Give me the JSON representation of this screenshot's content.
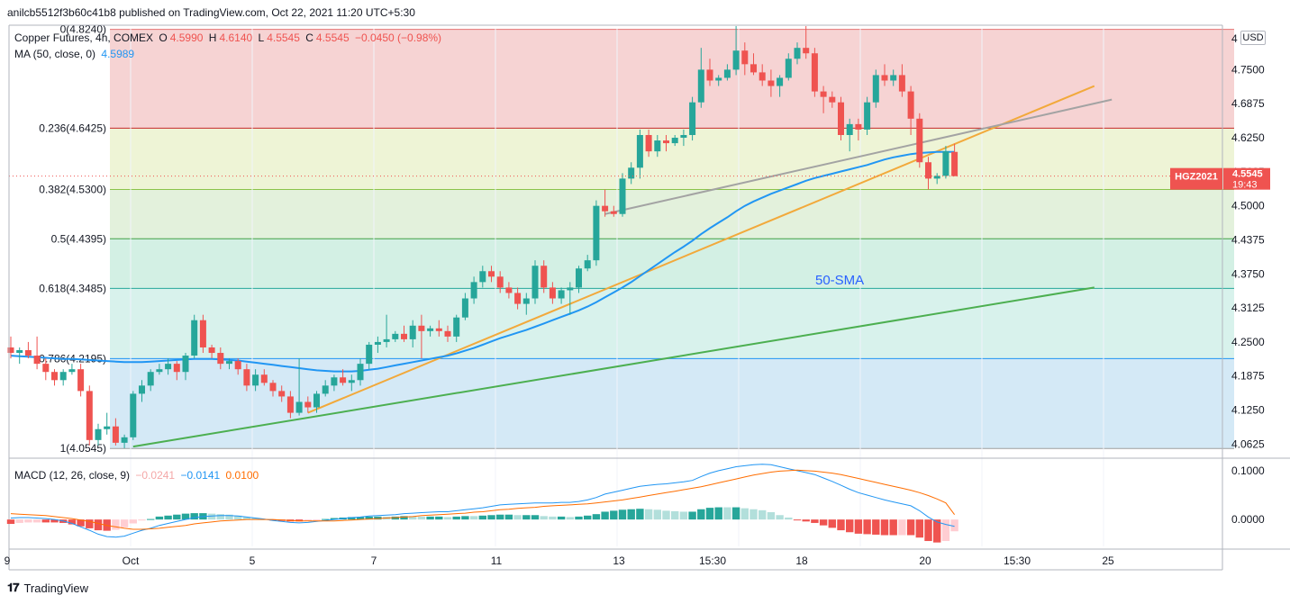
{
  "header": {
    "published": "anilcb5512f3b60c41b8 published on TradingView.com, Oct 22, 2021 11:20 UTC+5:30"
  },
  "legend": {
    "title": "Copper Futures, 4h, COMEX",
    "o_label": "O",
    "o_value": "4.5990",
    "h_label": "H",
    "h_value": "4.6140",
    "l_label": "L",
    "l_value": "4.5545",
    "c_label": "C",
    "c_value": "4.5545",
    "change": "−0.0450 (−0.98%)",
    "ma_label": "MA (50, close, 0)",
    "ma_value": "4.5989"
  },
  "macd_legend": {
    "label": "MACD (12, 26, close, 9)",
    "hist_value": "−0.0241",
    "macd_value": "−0.0141",
    "signal_value": "0.0100"
  },
  "price_axis": {
    "currency": "USD",
    "current_symbol": "HGZ2021",
    "current_price": "4.5545",
    "countdown": "19:43"
  },
  "footer": {
    "brand": "TradingView"
  },
  "colors": {
    "up": "#26a69a",
    "down": "#ef5350",
    "sma": "#2196f3",
    "macd_line": "#2196f3",
    "signal_line": "#ff6d00",
    "fib_red": "#f6cfcf",
    "trend_orange": "#f2a93b",
    "trend_green": "#4caf50",
    "trend_gray": "#a3a3a3"
  },
  "chart_data": [
    {
      "type": "candlestick",
      "title": "Copper Futures, 4h, COMEX",
      "annotation": "50-SMA",
      "ylim": [
        4.04,
        4.825
      ],
      "y_ticks": [
        "4",
        "4.7500",
        "4.6875",
        "4.6250",
        "4.5625",
        "4.5000",
        "4.4375",
        "4.3750",
        "4.3125",
        "4.2500",
        "4.1875",
        "4.1250",
        "4.0625"
      ],
      "x_ticks": [
        "9",
        "Oct",
        "5",
        "7",
        "11",
        "13",
        "15:30",
        "18",
        "20",
        "15:30",
        "25"
      ],
      "fib_levels": [
        {
          "label": "0(4.8240)",
          "price": 4.824
        },
        {
          "label": "0.236(4.6425)",
          "price": 4.6425
        },
        {
          "label": "0.382(4.5300)",
          "price": 4.53
        },
        {
          "label": "0.5(4.4395)",
          "price": 4.4395
        },
        {
          "label": "0.618(4.3485)",
          "price": 4.3485
        },
        {
          "label": "0.786(4.2195)",
          "price": 4.2195
        },
        {
          "label": "1(4.0545)",
          "price": 4.0545
        }
      ],
      "candles": [
        [
          4.24,
          4.26,
          4.22,
          4.23
        ],
        [
          4.23,
          4.24,
          4.21,
          4.235
        ],
        [
          4.235,
          4.25,
          4.22,
          4.225
        ],
        [
          4.225,
          4.26,
          4.2,
          4.21
        ],
        [
          4.21,
          4.22,
          4.18,
          4.195
        ],
        [
          4.195,
          4.2,
          4.17,
          4.18
        ],
        [
          4.18,
          4.2,
          4.17,
          4.195
        ],
        [
          4.195,
          4.21,
          4.19,
          4.2
        ],
        [
          4.2,
          4.21,
          4.15,
          4.16
        ],
        [
          4.16,
          4.17,
          4.06,
          4.07
        ],
        [
          4.07,
          4.1,
          4.06,
          4.09
        ],
        [
          4.09,
          4.12,
          4.08,
          4.095
        ],
        [
          4.095,
          4.11,
          4.06,
          4.065
        ],
        [
          4.065,
          4.08,
          4.055,
          4.075
        ],
        [
          4.075,
          4.16,
          4.07,
          4.155
        ],
        [
          4.155,
          4.18,
          4.14,
          4.17
        ],
        [
          4.17,
          4.2,
          4.16,
          4.195
        ],
        [
          4.195,
          4.21,
          4.19,
          4.2
        ],
        [
          4.2,
          4.22,
          4.19,
          4.21
        ],
        [
          4.21,
          4.215,
          4.18,
          4.195
        ],
        [
          4.195,
          4.23,
          4.18,
          4.225
        ],
        [
          4.225,
          4.3,
          4.22,
          4.29
        ],
        [
          4.29,
          4.3,
          4.23,
          4.24
        ],
        [
          4.24,
          4.245,
          4.22,
          4.23
        ],
        [
          4.23,
          4.24,
          4.2,
          4.21
        ],
        [
          4.21,
          4.22,
          4.2,
          4.215
        ],
        [
          4.215,
          4.22,
          4.19,
          4.2
        ],
        [
          4.2,
          4.21,
          4.16,
          4.17
        ],
        [
          4.17,
          4.2,
          4.16,
          4.19
        ],
        [
          4.19,
          4.2,
          4.17,
          4.175
        ],
        [
          4.175,
          4.18,
          4.15,
          4.16
        ],
        [
          4.16,
          4.17,
          4.14,
          4.15
        ],
        [
          4.15,
          4.16,
          4.11,
          4.12
        ],
        [
          4.12,
          4.22,
          4.115,
          4.14
        ],
        [
          4.14,
          4.15,
          4.12,
          4.13
        ],
        [
          4.13,
          4.16,
          4.12,
          4.155
        ],
        [
          4.155,
          4.18,
          4.15,
          4.17
        ],
        [
          4.17,
          4.19,
          4.16,
          4.185
        ],
        [
          4.185,
          4.2,
          4.17,
          4.175
        ],
        [
          4.175,
          4.19,
          4.16,
          4.18
        ],
        [
          4.18,
          4.22,
          4.17,
          4.21
        ],
        [
          4.21,
          4.25,
          4.2,
          4.245
        ],
        [
          4.245,
          4.26,
          4.23,
          4.25
        ],
        [
          4.25,
          4.3,
          4.24,
          4.255
        ],
        [
          4.255,
          4.27,
          4.25,
          4.265
        ],
        [
          4.265,
          4.28,
          4.25,
          4.255
        ],
        [
          4.255,
          4.29,
          4.24,
          4.28
        ],
        [
          4.28,
          4.3,
          4.22,
          4.27
        ],
        [
          4.27,
          4.28,
          4.26,
          4.275
        ],
        [
          4.275,
          4.29,
          4.26,
          4.27
        ],
        [
          4.27,
          4.28,
          4.25,
          4.26
        ],
        [
          4.26,
          4.3,
          4.25,
          4.295
        ],
        [
          4.295,
          4.34,
          4.29,
          4.33
        ],
        [
          4.33,
          4.37,
          4.32,
          4.36
        ],
        [
          4.36,
          4.39,
          4.35,
          4.38
        ],
        [
          4.38,
          4.39,
          4.36,
          4.37
        ],
        [
          4.37,
          4.38,
          4.34,
          4.35
        ],
        [
          4.35,
          4.36,
          4.33,
          4.34
        ],
        [
          4.34,
          4.35,
          4.31,
          4.32
        ],
        [
          4.32,
          4.34,
          4.3,
          4.33
        ],
        [
          4.33,
          4.4,
          4.32,
          4.39
        ],
        [
          4.39,
          4.4,
          4.34,
          4.35
        ],
        [
          4.35,
          4.36,
          4.32,
          4.33
        ],
        [
          4.33,
          4.35,
          4.32,
          4.345
        ],
        [
          4.345,
          4.36,
          4.3,
          4.35
        ],
        [
          4.35,
          4.39,
          4.34,
          4.385
        ],
        [
          4.385,
          4.41,
          4.38,
          4.4
        ],
        [
          4.4,
          4.51,
          4.39,
          4.5
        ],
        [
          4.5,
          4.53,
          4.48,
          4.49
        ],
        [
          4.49,
          4.5,
          4.48,
          4.485
        ],
        [
          4.485,
          4.56,
          4.48,
          4.55
        ],
        [
          4.55,
          4.58,
          4.54,
          4.57
        ],
        [
          4.57,
          4.64,
          4.55,
          4.63
        ],
        [
          4.63,
          4.64,
          4.59,
          4.6
        ],
        [
          4.6,
          4.63,
          4.59,
          4.62
        ],
        [
          4.62,
          4.63,
          4.6,
          4.615
        ],
        [
          4.615,
          4.63,
          4.61,
          4.625
        ],
        [
          4.625,
          4.64,
          4.61,
          4.63
        ],
        [
          4.63,
          4.7,
          4.62,
          4.69
        ],
        [
          4.69,
          4.79,
          4.68,
          4.75
        ],
        [
          4.75,
          4.77,
          4.72,
          4.73
        ],
        [
          4.73,
          4.74,
          4.72,
          4.735
        ],
        [
          4.735,
          4.76,
          4.73,
          4.75
        ],
        [
          4.75,
          4.83,
          4.74,
          4.785
        ],
        [
          4.785,
          4.8,
          4.74,
          4.76
        ],
        [
          4.76,
          4.78,
          4.74,
          4.745
        ],
        [
          4.745,
          4.76,
          4.72,
          4.73
        ],
        [
          4.73,
          4.75,
          4.7,
          4.72
        ],
        [
          4.72,
          4.74,
          4.7,
          4.735
        ],
        [
          4.735,
          4.78,
          4.73,
          4.77
        ],
        [
          4.77,
          4.8,
          4.76,
          4.79
        ],
        [
          4.79,
          4.83,
          4.77,
          4.78
        ],
        [
          4.78,
          4.79,
          4.7,
          4.71
        ],
        [
          4.71,
          4.72,
          4.67,
          4.7
        ],
        [
          4.7,
          4.71,
          4.68,
          4.69
        ],
        [
          4.69,
          4.7,
          4.62,
          4.63
        ],
        [
          4.63,
          4.66,
          4.6,
          4.65
        ],
        [
          4.65,
          4.66,
          4.62,
          4.64
        ],
        [
          4.64,
          4.7,
          4.63,
          4.69
        ],
        [
          4.69,
          4.75,
          4.68,
          4.74
        ],
        [
          4.74,
          4.76,
          4.72,
          4.73
        ],
        [
          4.73,
          4.75,
          4.72,
          4.74
        ],
        [
          4.74,
          4.76,
          4.7,
          4.71
        ],
        [
          4.71,
          4.72,
          4.63,
          4.66
        ],
        [
          4.66,
          4.67,
          4.57,
          4.58
        ],
        [
          4.58,
          4.59,
          4.53,
          4.55
        ],
        [
          4.55,
          4.56,
          4.54,
          4.555
        ],
        [
          4.555,
          4.61,
          4.55,
          4.6
        ],
        [
          4.599,
          4.614,
          4.5545,
          4.5545
        ]
      ],
      "series": [
        {
          "name": "MA (50, close, 0)",
          "values": [
            4.225,
            4.224,
            4.223,
            4.222,
            4.221,
            4.22,
            4.219,
            4.219,
            4.218,
            4.217,
            4.216,
            4.215,
            4.214,
            4.213,
            4.213,
            4.213,
            4.214,
            4.215,
            4.216,
            4.217,
            4.218,
            4.219,
            4.219,
            4.219,
            4.218,
            4.217,
            4.216,
            4.214,
            4.212,
            4.21,
            4.208,
            4.206,
            4.204,
            4.202,
            4.2,
            4.198,
            4.197,
            4.196,
            4.196,
            4.196,
            4.197,
            4.199,
            4.201,
            4.204,
            4.207,
            4.21,
            4.213,
            4.216,
            4.219,
            4.222,
            4.225,
            4.229,
            4.234,
            4.239,
            4.245,
            4.251,
            4.257,
            4.262,
            4.267,
            4.272,
            4.278,
            4.284,
            4.29,
            4.296,
            4.302,
            4.308,
            4.315,
            4.323,
            4.332,
            4.341,
            4.35,
            4.36,
            4.371,
            4.382,
            4.393,
            4.404,
            4.415,
            4.425,
            4.436,
            4.448,
            4.459,
            4.469,
            4.479,
            4.49,
            4.5,
            4.508,
            4.515,
            4.522,
            4.528,
            4.534,
            4.54,
            4.546,
            4.551,
            4.555,
            4.559,
            4.563,
            4.567,
            4.571,
            4.575,
            4.58,
            4.585,
            4.589,
            4.592,
            4.595,
            4.597,
            4.598,
            4.599,
            4.599,
            4.5989
          ]
        }
      ],
      "trendlines": [
        {
          "name": "support-green",
          "from": [
            14,
            4.058
          ],
          "to": [
            124,
            4.35
          ]
        },
        {
          "name": "support-orange",
          "from": [
            34,
            4.12
          ],
          "to": [
            124,
            4.72
          ]
        },
        {
          "name": "resistance-gray",
          "from": [
            68,
            4.485
          ],
          "to": [
            126,
            4.695
          ]
        }
      ]
    },
    {
      "type": "macd",
      "title": "MACD (12, 26, close, 9)",
      "ylim": [
        -0.055,
        0.12
      ],
      "y_ticks": [
        "0.1000",
        "0.0000"
      ],
      "macd": [
        0.003,
        0.004,
        0.004,
        0.003,
        0.002,
        0.0,
        -0.003,
        -0.008,
        -0.015,
        -0.022,
        -0.03,
        -0.035,
        -0.036,
        -0.034,
        -0.028,
        -0.022,
        -0.018,
        -0.012,
        -0.008,
        -0.004,
        0.0,
        0.004,
        0.006,
        0.007,
        0.008,
        0.008,
        0.007,
        0.005,
        0.003,
        0.001,
        -0.002,
        -0.004,
        -0.006,
        -0.007,
        -0.006,
        -0.004,
        -0.002,
        0.0,
        0.002,
        0.004,
        0.005,
        0.007,
        0.008,
        0.009,
        0.01,
        0.012,
        0.013,
        0.014,
        0.015,
        0.016,
        0.016,
        0.018,
        0.02,
        0.022,
        0.024,
        0.027,
        0.03,
        0.031,
        0.032,
        0.033,
        0.034,
        0.034,
        0.034,
        0.035,
        0.035,
        0.037,
        0.04,
        0.045,
        0.052,
        0.056,
        0.06,
        0.064,
        0.068,
        0.07,
        0.072,
        0.073,
        0.075,
        0.077,
        0.08,
        0.088,
        0.095,
        0.1,
        0.104,
        0.108,
        0.11,
        0.112,
        0.113,
        0.112,
        0.108,
        0.104,
        0.1,
        0.096,
        0.092,
        0.085,
        0.078,
        0.07,
        0.062,
        0.055,
        0.05,
        0.045,
        0.04,
        0.036,
        0.032,
        0.028,
        0.018,
        0.005,
        -0.005,
        -0.01,
        -0.0141
      ],
      "signal": [
        0.012,
        0.011,
        0.01,
        0.009,
        0.008,
        0.006,
        0.004,
        0.002,
        -0.001,
        -0.004,
        -0.008,
        -0.012,
        -0.015,
        -0.018,
        -0.02,
        -0.02,
        -0.019,
        -0.018,
        -0.016,
        -0.014,
        -0.012,
        -0.009,
        -0.007,
        -0.005,
        -0.003,
        -0.002,
        -0.001,
        0.0,
        0.0,
        0.0,
        0.0,
        -0.001,
        -0.002,
        -0.003,
        -0.003,
        -0.003,
        -0.003,
        -0.003,
        -0.002,
        -0.001,
        0.0,
        0.001,
        0.002,
        0.003,
        0.004,
        0.005,
        0.006,
        0.008,
        0.009,
        0.01,
        0.011,
        0.012,
        0.013,
        0.015,
        0.016,
        0.018,
        0.02,
        0.021,
        0.023,
        0.024,
        0.025,
        0.027,
        0.028,
        0.029,
        0.03,
        0.031,
        0.032,
        0.034,
        0.036,
        0.038,
        0.04,
        0.043,
        0.046,
        0.049,
        0.052,
        0.055,
        0.058,
        0.061,
        0.064,
        0.067,
        0.071,
        0.075,
        0.079,
        0.083,
        0.087,
        0.091,
        0.094,
        0.097,
        0.099,
        0.1,
        0.101,
        0.1,
        0.099,
        0.097,
        0.095,
        0.092,
        0.088,
        0.084,
        0.08,
        0.076,
        0.072,
        0.068,
        0.064,
        0.06,
        0.055,
        0.049,
        0.042,
        0.034,
        0.01
      ]
    }
  ]
}
